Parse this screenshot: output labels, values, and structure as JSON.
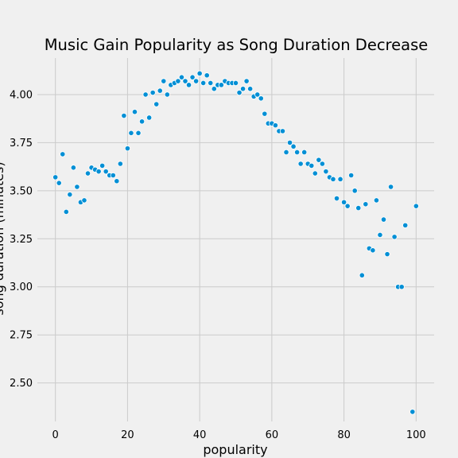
{
  "chart_data": {
    "type": "scatter",
    "title": "Music Gain Popularity as Song Duration Decrease",
    "xlabel": "popularity",
    "ylabel": "song duration (minutes)",
    "xlim": [
      -5,
      105
    ],
    "ylim": [
      2.3,
      4.19
    ],
    "xticks": [
      0,
      20,
      40,
      60,
      80,
      100
    ],
    "yticks": [
      2.5,
      2.75,
      3.0,
      3.25,
      3.5,
      3.75,
      4.0
    ],
    "ytick_labels": [
      "2.50",
      "2.75",
      "3.00",
      "3.25",
      "3.50",
      "3.75",
      "4.00"
    ],
    "grid": true,
    "background": "#f0f0f0",
    "point_color": "#008fd5",
    "x": [
      0,
      1,
      2,
      3,
      4,
      5,
      6,
      7,
      8,
      9,
      10,
      11,
      12,
      13,
      14,
      15,
      16,
      17,
      18,
      19,
      20,
      21,
      22,
      23,
      24,
      25,
      26,
      27,
      28,
      29,
      30,
      31,
      32,
      33,
      34,
      35,
      36,
      37,
      38,
      39,
      40,
      41,
      42,
      43,
      44,
      45,
      46,
      47,
      48,
      49,
      50,
      51,
      52,
      53,
      54,
      55,
      56,
      57,
      58,
      59,
      60,
      61,
      62,
      63,
      64,
      65,
      66,
      67,
      68,
      69,
      70,
      71,
      72,
      73,
      74,
      75,
      76,
      77,
      78,
      79,
      80,
      81,
      82,
      83,
      84,
      85,
      86,
      87,
      88,
      89,
      90,
      91,
      92,
      93,
      94,
      95,
      96,
      97,
      99,
      100
    ],
    "y": [
      3.57,
      3.54,
      3.69,
      3.39,
      3.48,
      3.62,
      3.52,
      3.44,
      3.45,
      3.59,
      3.62,
      3.61,
      3.6,
      3.63,
      3.6,
      3.58,
      3.58,
      3.55,
      3.64,
      3.89,
      3.72,
      3.8,
      3.91,
      3.8,
      3.86,
      4.0,
      3.88,
      4.01,
      3.95,
      4.02,
      4.07,
      4.0,
      4.05,
      4.06,
      4.07,
      4.09,
      4.07,
      4.05,
      4.09,
      4.07,
      4.11,
      4.06,
      4.1,
      4.06,
      4.03,
      4.05,
      4.05,
      4.07,
      4.06,
      4.06,
      4.06,
      4.01,
      4.03,
      4.07,
      4.03,
      3.99,
      4.0,
      3.98,
      3.9,
      3.85,
      3.85,
      3.84,
      3.81,
      3.81,
      3.7,
      3.75,
      3.73,
      3.7,
      3.64,
      3.7,
      3.64,
      3.63,
      3.59,
      3.66,
      3.64,
      3.6,
      3.57,
      3.56,
      3.46,
      3.56,
      3.44,
      3.42,
      3.58,
      3.5,
      3.41,
      3.06,
      3.43,
      3.2,
      3.19,
      3.45,
      3.27,
      3.35,
      3.17,
      3.52,
      3.26,
      3.0,
      3.0,
      3.32,
      2.35,
      3.42
    ]
  }
}
